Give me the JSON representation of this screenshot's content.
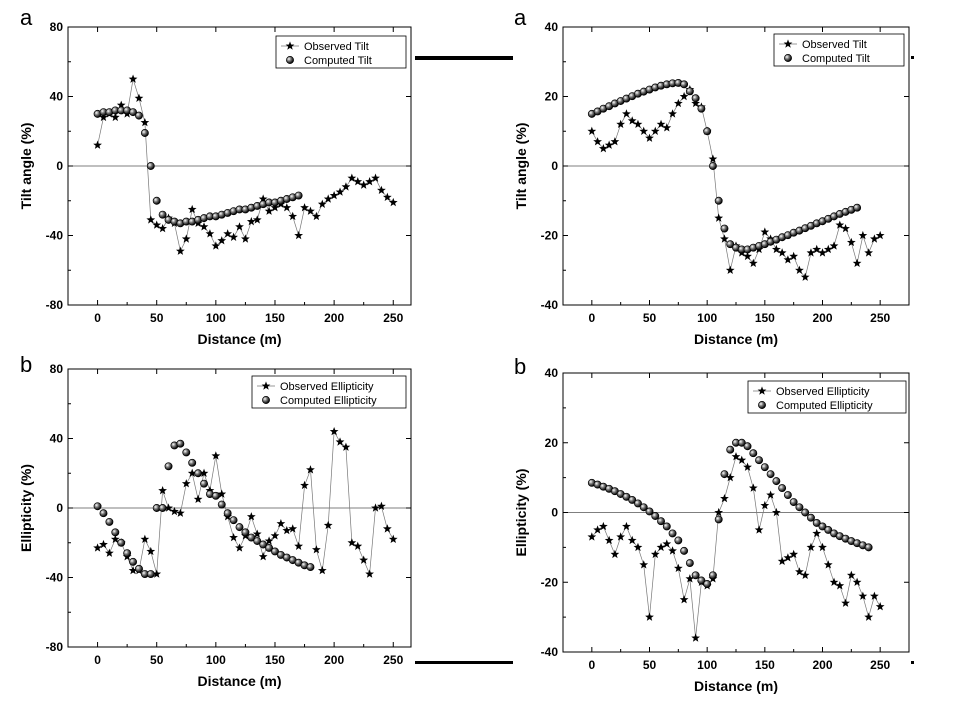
{
  "chart_data": [
    {
      "type": "line",
      "panel_letter": "a",
      "xlabel": "Distance (m)",
      "ylabel": "Tilt angle (%)",
      "xlim": [
        -25,
        265
      ],
      "ylim": [
        -80,
        80
      ],
      "xticks": [
        0,
        50,
        100,
        150,
        200,
        250
      ],
      "yticks": [
        -80,
        -40,
        0,
        40,
        80
      ],
      "zero_line": true,
      "legend": "top-right",
      "series": [
        {
          "name": "Observed Tilt",
          "marker": "star",
          "x": [
            0,
            5,
            10,
            15,
            20,
            25,
            30,
            35,
            40,
            45,
            50,
            55,
            60,
            65,
            70,
            75,
            80,
            85,
            90,
            95,
            100,
            105,
            110,
            115,
            120,
            125,
            130,
            135,
            140,
            145,
            150,
            155,
            160,
            165,
            170,
            175,
            180,
            185,
            190,
            195,
            200,
            205,
            210,
            215,
            220,
            225,
            230,
            235,
            240,
            245,
            250
          ],
          "y": [
            12,
            28,
            30,
            28,
            35,
            30,
            50,
            39,
            25,
            -31,
            -34,
            -36,
            -30,
            -33,
            -49,
            -42,
            -25,
            -33,
            -35,
            -39,
            -46,
            -43,
            -39,
            -41,
            -35,
            -42,
            -32,
            -31,
            -19,
            -26,
            -24,
            -22,
            -24,
            -29,
            -40,
            -24,
            -26,
            -29,
            -22,
            -19,
            -17,
            -15,
            -12,
            -7,
            -9,
            -11,
            -9,
            -7,
            -14,
            -18,
            -21
          ]
        },
        {
          "name": "Computed Tilt",
          "marker": "ball",
          "x": [
            0,
            5,
            10,
            15,
            20,
            25,
            30,
            35,
            40,
            45,
            50,
            55,
            60,
            65,
            70,
            75,
            80,
            85,
            90,
            95,
            100,
            105,
            110,
            115,
            120,
            125,
            130,
            135,
            140,
            145,
            150,
            155,
            160,
            165,
            170
          ],
          "y": [
            30,
            31,
            31,
            32,
            32,
            32,
            31,
            29,
            19,
            0,
            -20,
            -28,
            -31,
            -32,
            -33,
            -32,
            -32,
            -31,
            -30,
            -29,
            -29,
            -28,
            -27,
            -26,
            -25,
            -25,
            -24,
            -23,
            -22,
            -21,
            -21,
            -20,
            -19,
            -18,
            -17
          ]
        }
      ]
    },
    {
      "type": "line",
      "panel_letter": "a",
      "xlabel": "Distance (m)",
      "ylabel": "Tilt angle (%)",
      "xlim": [
        -25,
        275
      ],
      "ylim": [
        -40,
        40
      ],
      "xticks": [
        0,
        50,
        100,
        150,
        200,
        250
      ],
      "yticks": [
        -40,
        -20,
        0,
        20,
        40
      ],
      "zero_line": true,
      "legend": "top-right",
      "series": [
        {
          "name": "Observed Tilt",
          "marker": "star",
          "x": [
            0,
            5,
            10,
            15,
            20,
            25,
            30,
            35,
            40,
            45,
            50,
            55,
            60,
            65,
            70,
            75,
            80,
            85,
            90,
            95,
            100,
            105,
            110,
            115,
            120,
            125,
            130,
            135,
            140,
            145,
            150,
            155,
            160,
            165,
            170,
            175,
            180,
            185,
            190,
            195,
            200,
            205,
            210,
            215,
            220,
            225,
            230,
            235,
            240,
            245,
            250
          ],
          "y": [
            10,
            7,
            5,
            6,
            7,
            12,
            15,
            13,
            12,
            10,
            8,
            10,
            12,
            11,
            15,
            18,
            20,
            22,
            18,
            17,
            10,
            2,
            -15,
            -21,
            -30,
            -23,
            -25,
            -26,
            -28,
            -24,
            -19,
            -21,
            -24,
            -25,
            -27,
            -26,
            -30,
            -32,
            -25,
            -24,
            -25,
            -24,
            -23,
            -17,
            -18,
            -22,
            -28,
            -20,
            -25,
            -21,
            -20
          ]
        },
        {
          "name": "Computed Tilt",
          "marker": "ball",
          "x": [
            0,
            5,
            10,
            15,
            20,
            25,
            30,
            35,
            40,
            45,
            50,
            55,
            60,
            65,
            70,
            75,
            80,
            85,
            90,
            95,
            100,
            105,
            110,
            115,
            120,
            125,
            130,
            135,
            140,
            145,
            150,
            155,
            160,
            165,
            170,
            175,
            180,
            185,
            190,
            195,
            200,
            205,
            210,
            215,
            220,
            225,
            230
          ],
          "y": [
            15,
            15.7,
            16.5,
            17.2,
            18,
            18.7,
            19.4,
            20.1,
            20.8,
            21.4,
            22,
            22.6,
            23.1,
            23.5,
            23.8,
            23.9,
            23.5,
            21.5,
            19.5,
            16.5,
            10,
            0,
            -10,
            -18,
            -22.5,
            -23.5,
            -24,
            -24,
            -23.5,
            -23,
            -22.5,
            -21.8,
            -21.2,
            -20.5,
            -19.9,
            -19.2,
            -18.6,
            -17.9,
            -17.2,
            -16.5,
            -15.9,
            -15.2,
            -14.5,
            -13.8,
            -13.2,
            -12.6,
            -12
          ]
        }
      ]
    },
    {
      "type": "line",
      "panel_letter": "b",
      "xlabel": "Distance (m)",
      "ylabel": "Ellipticity (%)",
      "xlim": [
        -25,
        265
      ],
      "ylim": [
        -80,
        80
      ],
      "xticks": [
        0,
        50,
        100,
        150,
        200,
        250
      ],
      "yticks": [
        -80,
        -40,
        0,
        40,
        80
      ],
      "zero_line": true,
      "legend": "top-right",
      "series": [
        {
          "name": "Observed Ellipticity",
          "marker": "star",
          "x": [
            0,
            5,
            10,
            15,
            20,
            25,
            30,
            35,
            40,
            45,
            50,
            55,
            60,
            65,
            70,
            75,
            80,
            85,
            90,
            95,
            100,
            105,
            110,
            115,
            120,
            125,
            130,
            135,
            140,
            145,
            150,
            155,
            160,
            165,
            170,
            175,
            180,
            185,
            190,
            195,
            200,
            205,
            210,
            215,
            220,
            225,
            230,
            235,
            240,
            245,
            250
          ],
          "y": [
            -23,
            -21,
            -26,
            -18,
            -20,
            -28,
            -36,
            -36,
            -18,
            -25,
            -38,
            10,
            0,
            -2,
            -3,
            14,
            20,
            5,
            20,
            10,
            30,
            8,
            -5,
            -17,
            -23,
            -16,
            -5,
            -15,
            -28,
            -19,
            -16,
            -9,
            -13,
            -12,
            -22,
            13,
            22,
            -24,
            -36,
            -10,
            44,
            38,
            35,
            -20,
            -22,
            -30,
            -38,
            0,
            1,
            -12,
            -18
          ]
        },
        {
          "name": "Computed Ellipticity",
          "marker": "ball",
          "x": [
            0,
            5,
            10,
            15,
            20,
            25,
            30,
            35,
            40,
            45,
            50,
            55,
            60,
            65,
            70,
            75,
            80,
            85,
            90,
            95,
            100,
            105,
            110,
            115,
            120,
            125,
            130,
            135,
            140,
            145,
            150,
            155,
            160,
            165,
            170,
            175,
            180
          ],
          "y": [
            1,
            -3,
            -8,
            -14,
            -20,
            -26,
            -31,
            -35,
            -38,
            -38,
            0,
            0,
            24,
            36,
            37,
            32,
            26,
            20,
            14,
            8,
            7,
            2,
            -3,
            -7,
            -11,
            -14,
            -17,
            -19,
            -21,
            -23,
            -25,
            -27,
            -28.5,
            -30,
            -31.5,
            -33,
            -34
          ]
        }
      ]
    },
    {
      "type": "line",
      "panel_letter": "b",
      "xlabel": "Distance (m)",
      "ylabel": "Ellipticity (%)",
      "xlim": [
        -25,
        275
      ],
      "ylim": [
        -40,
        40
      ],
      "xticks": [
        0,
        50,
        100,
        150,
        200,
        250
      ],
      "yticks": [
        -40,
        -20,
        0,
        20,
        40
      ],
      "zero_line": true,
      "legend": "top-right",
      "series": [
        {
          "name": "Observed Ellipticity",
          "marker": "star",
          "x": [
            0,
            5,
            10,
            15,
            20,
            25,
            30,
            35,
            40,
            45,
            50,
            55,
            60,
            65,
            70,
            75,
            80,
            85,
            90,
            95,
            100,
            105,
            110,
            115,
            120,
            125,
            130,
            135,
            140,
            145,
            150,
            155,
            160,
            165,
            170,
            175,
            180,
            185,
            190,
            195,
            200,
            205,
            210,
            215,
            220,
            225,
            230,
            235,
            240,
            245,
            250
          ],
          "y": [
            -7,
            -5,
            -4,
            -8,
            -12,
            -7,
            -4,
            -8,
            -10,
            -15,
            -30,
            -12,
            -10,
            -9,
            -11,
            -16,
            -25,
            -19,
            -36,
            -20,
            -21,
            -19,
            0,
            4,
            10,
            16,
            15,
            13,
            7,
            -5,
            2,
            5,
            0,
            -14,
            -13,
            -12,
            -17,
            -18,
            -10,
            -6,
            -10,
            -15,
            -20,
            -21,
            -26,
            -18,
            -20,
            -24,
            -30,
            -24,
            -27
          ]
        },
        {
          "name": "Computed Ellipticity",
          "marker": "ball",
          "x": [
            0,
            5,
            10,
            15,
            20,
            25,
            30,
            35,
            40,
            45,
            50,
            55,
            60,
            65,
            70,
            75,
            80,
            85,
            90,
            95,
            100,
            105,
            110,
            115,
            120,
            125,
            130,
            135,
            140,
            145,
            150,
            155,
            160,
            165,
            170,
            175,
            180,
            185,
            190,
            195,
            200,
            205,
            210,
            215,
            220,
            225,
            230,
            235,
            240
          ],
          "y": [
            8.5,
            8,
            7.4,
            6.8,
            6.1,
            5.3,
            4.5,
            3.6,
            2.6,
            1.5,
            0.3,
            -1,
            -2.5,
            -4,
            -6,
            -8,
            -11,
            -14.5,
            -18,
            -19.5,
            -20.5,
            -18,
            -2,
            11,
            18,
            20,
            20,
            19,
            17,
            15,
            13,
            11,
            9,
            7,
            5,
            3,
            1.5,
            0,
            -1.5,
            -3,
            -4,
            -5,
            -6,
            -6.8,
            -7.5,
            -8.2,
            -8.8,
            -9.4,
            -10
          ]
        }
      ]
    }
  ]
}
